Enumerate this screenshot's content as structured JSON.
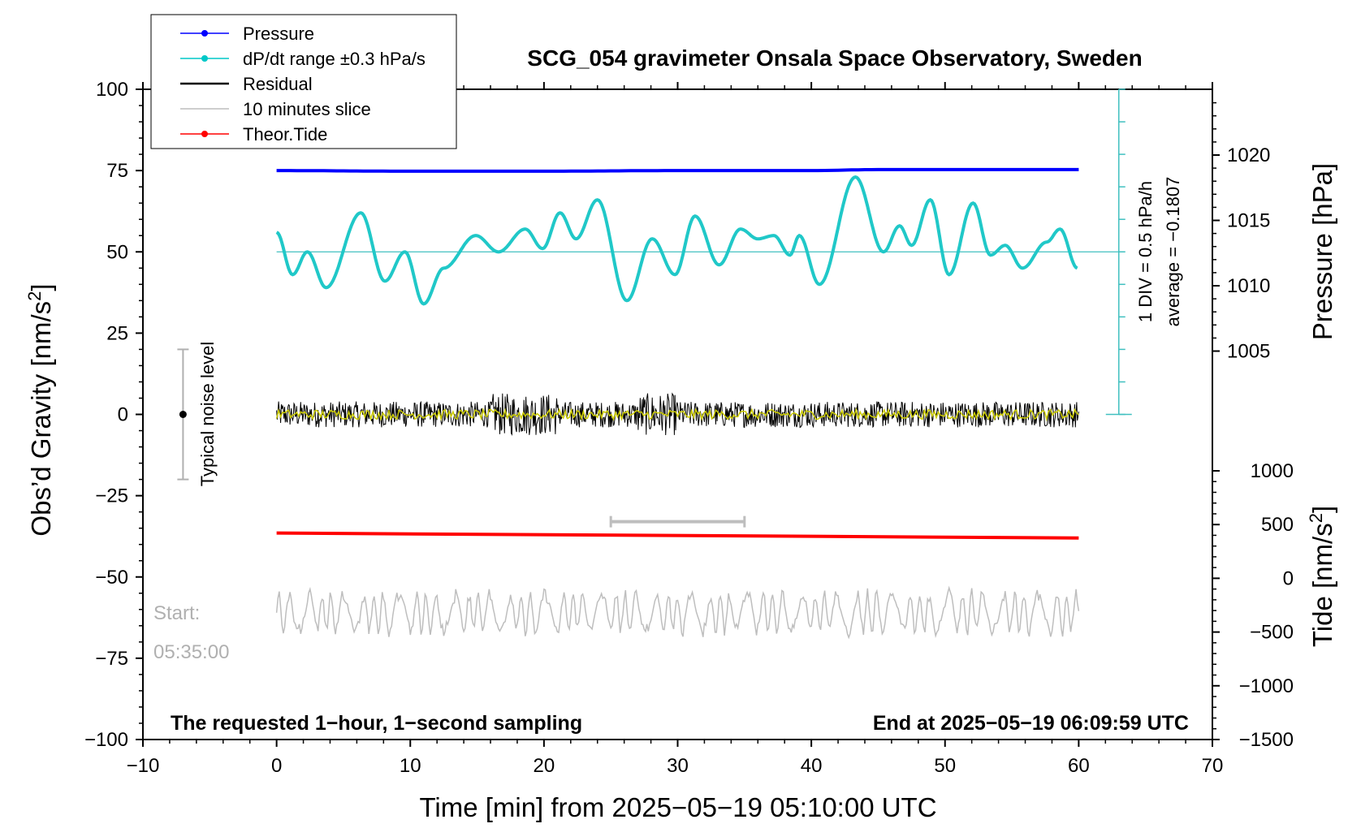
{
  "chart_data": {
    "type": "line",
    "title": "SCG_054 gravimeter Onsala Space Observatory, Sweden",
    "xlabel": "Time [min] from 2025−05−19 05:10:00 UTC",
    "xlim": [
      -10,
      70
    ],
    "x_ticks": [
      "−10",
      "0",
      "10",
      "20",
      "30",
      "40",
      "50",
      "60",
      "70"
    ],
    "left_axis": {
      "label": "Obs'd Gravity [nm/s²]",
      "ylim": [
        -100,
        100
      ],
      "ticks": [
        "100",
        "75",
        "50",
        "25",
        "0",
        "−25",
        "−50",
        "−75",
        "−100"
      ]
    },
    "pressure_axis": {
      "label": "Pressure [hPa]",
      "ticks": [
        "1020",
        "1015",
        "1010",
        "1005"
      ]
    },
    "tide_axis": {
      "label": "Tide [nm/s²]",
      "ticks": [
        "1000",
        "500",
        "0",
        "−500",
        "−1000",
        "−1500"
      ]
    },
    "legend": {
      "placement": "top-left",
      "entries": [
        {
          "label": "Pressure",
          "color": "#0000ff",
          "marker": true
        },
        {
          "label": "dP/dt range ±0.3 hPa/s",
          "color": "#00c8c8",
          "marker": true
        },
        {
          "label": "Residual",
          "color": "#000000",
          "marker": false
        },
        {
          "label": "10 minutes slice",
          "color": "#bebebe",
          "marker": false
        },
        {
          "label": "Theor.Tide",
          "color": "#ff0000",
          "marker": true
        }
      ]
    },
    "series": [
      {
        "name": "Pressure",
        "color": "#0000ff",
        "x": [
          0,
          10,
          20,
          30,
          40,
          45,
          50,
          60
        ],
        "y": [
          75,
          74.8,
          74.8,
          75,
          75,
          75.3,
          75.3,
          75.3
        ]
      },
      {
        "name": "dP/dt range ±0.3 hPa/s",
        "color": "#20c8c8",
        "x": [
          0,
          1.2,
          2.3,
          3.7,
          6.3,
          8.1,
          9.6,
          11,
          12.5,
          14.9,
          16.6,
          18.6,
          19.9,
          21.2,
          22.4,
          24,
          26.2,
          28.1,
          29.8,
          31.3,
          33.1,
          34.7,
          36,
          37.2,
          38.4,
          39.1,
          40.6,
          43.3,
          45.4,
          46.6,
          47.5,
          48.9,
          50.3,
          52.1,
          53.4,
          54.5,
          55.8,
          57.6,
          58.6,
          59.9
        ],
        "y": [
          56,
          43,
          50,
          39,
          62,
          41,
          50,
          34,
          45,
          55,
          50,
          57,
          51,
          62,
          54,
          66,
          35,
          54,
          43,
          61,
          46,
          57,
          54,
          55,
          49,
          55,
          40,
          73,
          50,
          58,
          52,
          66,
          43,
          65,
          49,
          52,
          45,
          53,
          57,
          45
        ]
      },
      {
        "name": "Residual",
        "color": "#000000",
        "x_range": [
          0,
          60
        ],
        "center": 0,
        "amplitude_typical": 4,
        "amplitude_max": 10
      },
      {
        "name": "Residual (smoothed)",
        "color": "#cccc00",
        "x_range": [
          0,
          60
        ],
        "center": 0,
        "amplitude_typical": 1.5
      },
      {
        "name": "Theor.Tide",
        "color": "#ff0000",
        "x": [
          0,
          60
        ],
        "y": [
          -36.5,
          -38
        ]
      },
      {
        "name": "10 minutes slice",
        "color": "#bebebe",
        "x_range": [
          25,
          35
        ],
        "y": -33,
        "waveform_x_range": [
          0,
          60
        ],
        "waveform_center": -61,
        "waveform_amplitude": 7
      }
    ],
    "dpdt_scale": {
      "text_line1": "1 DIV = 0.5 hPa/h",
      "text_line2": "average = −0.1807",
      "x": 63,
      "y_range": [
        0,
        100
      ],
      "divisions": 10
    },
    "noise_indicator": {
      "label": "Typical noise level",
      "x": -7,
      "center": 0,
      "range": [
        -20,
        20
      ]
    },
    "start_label": [
      "Start:",
      "05:35:00"
    ],
    "footer_left": "The requested 1−hour, 1−second sampling",
    "footer_right": "End at 2025−05−19 06:09:59 UTC"
  }
}
